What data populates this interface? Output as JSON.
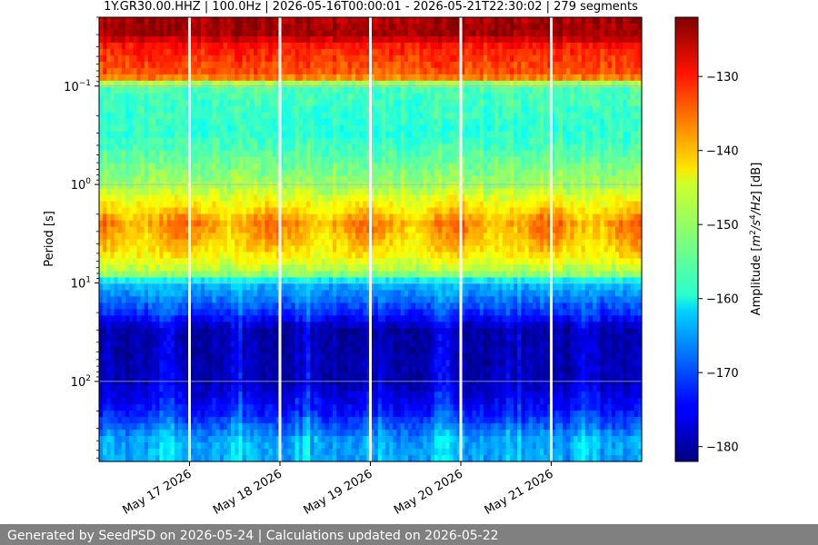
{
  "chart_data": {
    "type": "heatmap",
    "title": "1Y.GR30.00.HHZ | 100.0Hz | 2026-05-16T00:00:01 - 2026-05-21T22:30:02 | 279 segments",
    "xlabel": "",
    "ylabel": "Period [s]",
    "y_scale": "log",
    "y_inverted": true,
    "ylim": [
      0.02,
      650
    ],
    "y_ticks": [
      {
        "value": 0.1,
        "base": "10",
        "exp": "−1"
      },
      {
        "value": 1,
        "base": "10",
        "exp": "0"
      },
      {
        "value": 10,
        "base": "10",
        "exp": "1"
      },
      {
        "value": 100,
        "base": "10",
        "exp": "2"
      }
    ],
    "x_range": [
      "2026-05-16",
      "2026-05-22"
    ],
    "x_ticks": [
      "May 17 2026",
      "May 18 2026",
      "May 19 2026",
      "May 20 2026",
      "May 21 2026"
    ],
    "grid": true,
    "colorbar": {
      "label": "Amplitude [m²/s⁴/Hz] [dB]",
      "label_parts": {
        "a": "Amplitude [",
        "m": "m",
        "e1": "2",
        "s": "/s",
        "e2": "4",
        "hz": "/Hz",
        "b": "] [dB]"
      },
      "range": [
        -182,
        -122
      ],
      "ticks": [
        -130,
        -140,
        -150,
        -160,
        -170,
        -180
      ],
      "colormap": "jet"
    },
    "data_gaps": [
      "2026-05-17 00:00",
      "2026-05-18 00:00",
      "2026-05-19 00:00",
      "2026-05-20 00:00",
      "2026-05-21 00:00"
    ],
    "psd_profile": [
      {
        "period": 0.02,
        "db": -124
      },
      {
        "period": 0.03,
        "db": -124
      },
      {
        "period": 0.04,
        "db": -131
      },
      {
        "period": 0.08,
        "db": -135
      },
      {
        "period": 0.1,
        "db": -155
      },
      {
        "period": 0.3,
        "db": -157
      },
      {
        "period": 1.0,
        "db": -150
      },
      {
        "period": 2.5,
        "db": -138
      },
      {
        "period": 5.0,
        "db": -143
      },
      {
        "period": 8.0,
        "db": -150
      },
      {
        "period": 10.0,
        "db": -163
      },
      {
        "period": 20.0,
        "db": -172
      },
      {
        "period": 30.0,
        "db": -180
      },
      {
        "period": 100.0,
        "db": -179
      },
      {
        "period": 200.0,
        "db": -174
      },
      {
        "period": 400.0,
        "db": -165
      }
    ]
  },
  "footer": {
    "text": "Generated by SeedPSD on 2026-05-24 | Calculations updated on 2026-05-22"
  }
}
